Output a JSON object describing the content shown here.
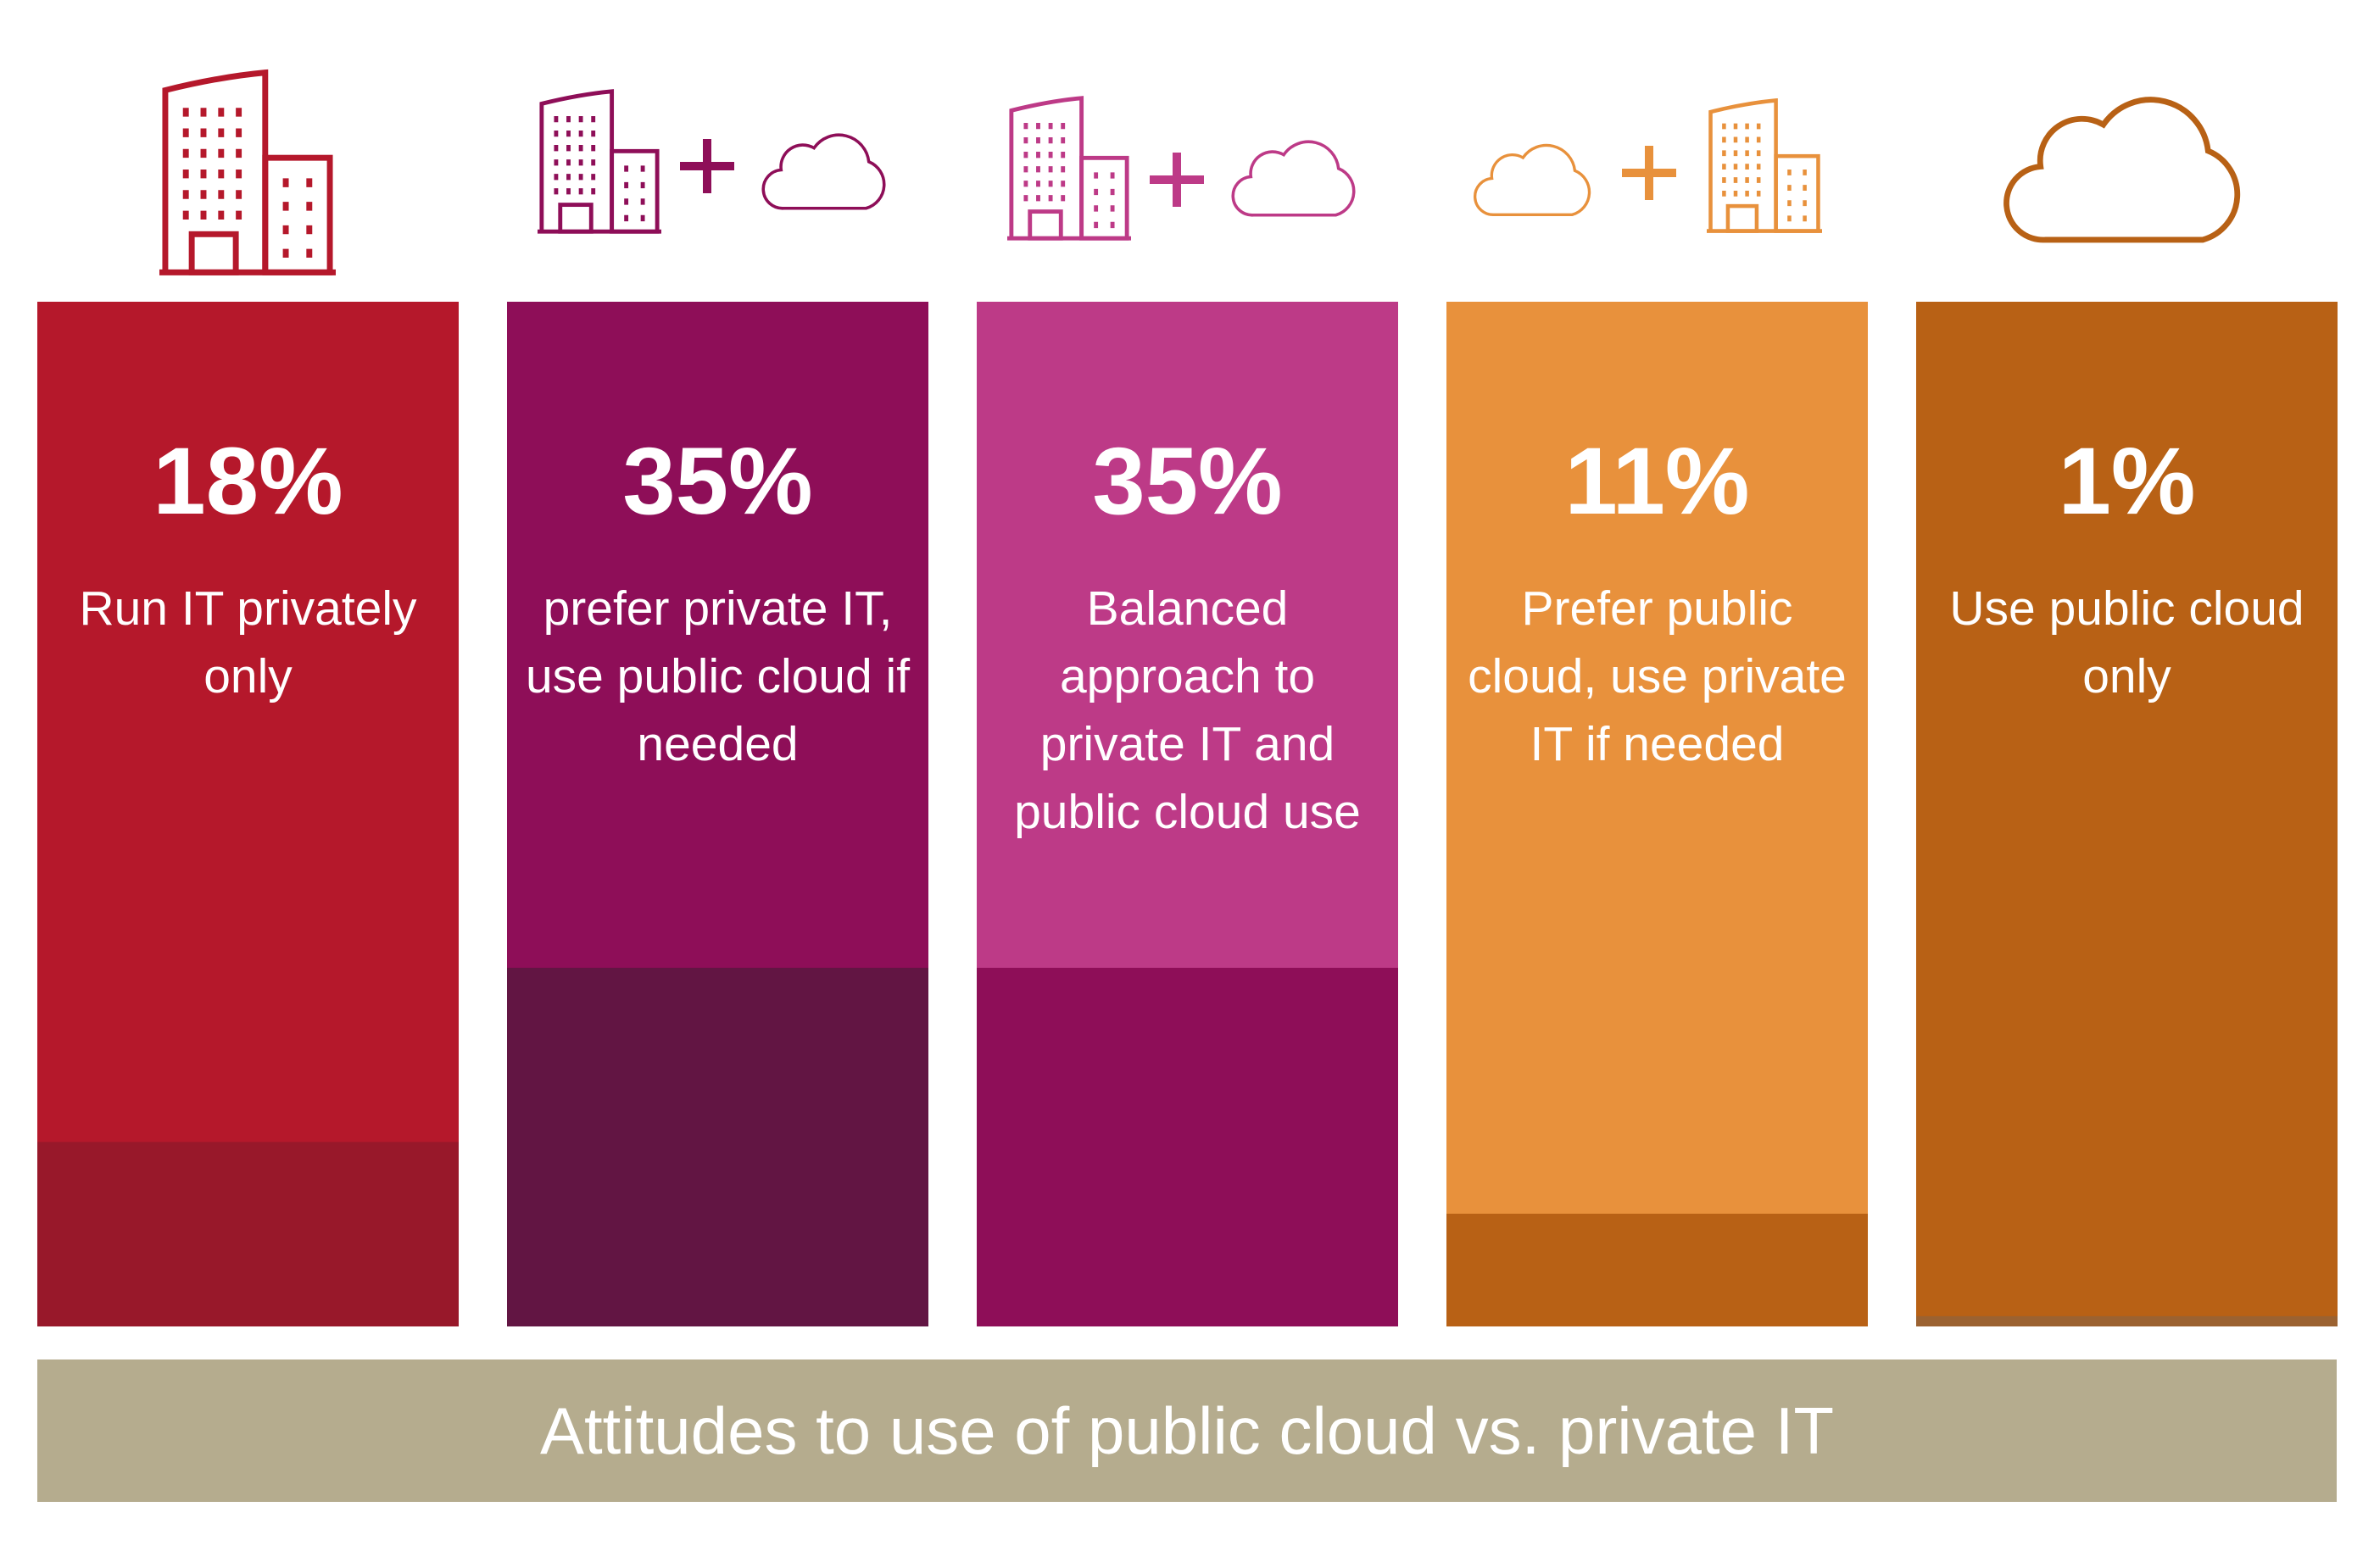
{
  "chart_data": {
    "type": "bar",
    "title": "Attitudes to use of public cloud vs. private IT",
    "categories": [
      "Run IT privately only",
      "prefer private IT, use public cloud if needed",
      "Balanced approach to private IT and public cloud use",
      "Prefer public cloud, use private IT if needed",
      "Use public cloud only"
    ],
    "values": [
      18,
      35,
      35,
      11,
      1
    ],
    "value_labels": [
      "18%",
      "35%",
      "35%",
      "11%",
      "1%"
    ],
    "colors": [
      "#b5182b",
      "#8e0e58",
      "#bd3a87",
      "#e8913c",
      "#b86115"
    ],
    "dark_colors": [
      "#98182a",
      "#621543",
      "#8e0e58",
      "#b86115",
      "#9b6231"
    ],
    "title_color": "#b5ac8e",
    "ylim": [
      0,
      100
    ]
  }
}
